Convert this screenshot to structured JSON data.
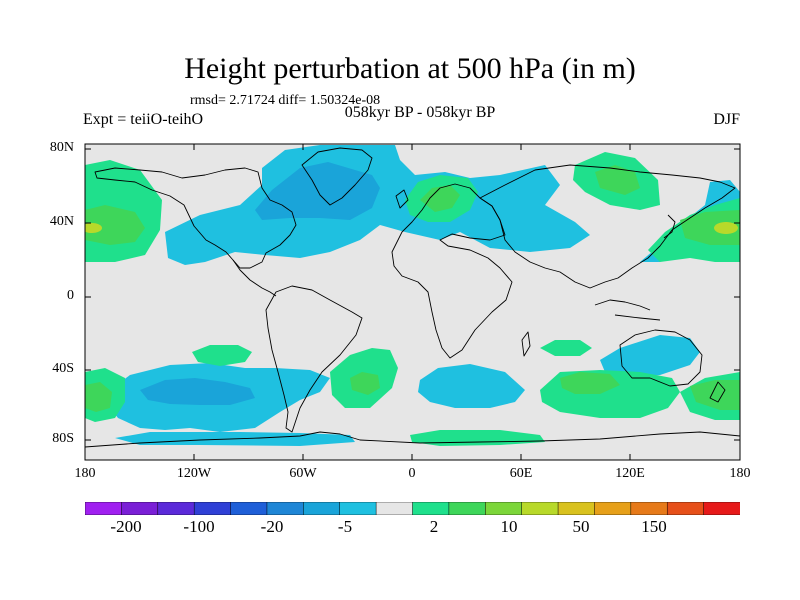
{
  "title": "Height perturbation at 500 hPa (in m)",
  "stats": "rmsd= 2.71724 diff= 1.50324e-08",
  "experiment": "Expt = teiiO-teihO",
  "period": "058kyr BP - 058kyr BP",
  "season": "DJF",
  "lat_labels": [
    "80N",
    "40N",
    "0",
    "40S",
    "80S"
  ],
  "lon_labels": [
    "180",
    "120W",
    "60W",
    "0",
    "60E",
    "120E",
    "180"
  ],
  "colorbar": {
    "colors": [
      "#a020f0",
      "#7a1fd6",
      "#5b2ad9",
      "#2f40d6",
      "#1f5fd8",
      "#1f86d6",
      "#1aa4d9",
      "#1fc0e0",
      "#e6e6e6",
      "#1fe08c",
      "#3ed65a",
      "#7cd63a",
      "#b8d92a",
      "#d9c21f",
      "#e6a01a",
      "#e67a1a",
      "#e6501a",
      "#e61a1a"
    ],
    "labels": [
      "-200",
      "-100",
      "-20",
      "-5",
      "2",
      "10",
      "50",
      "150"
    ]
  },
  "palette": {
    "neutral": "#e6e6e6",
    "blue_weak": "#1fc0e0",
    "blue_mid": "#1aa4d9",
    "green_weak": "#1fe08c",
    "green_mid": "#3ed65a",
    "yellow": "#b8d92a"
  }
}
